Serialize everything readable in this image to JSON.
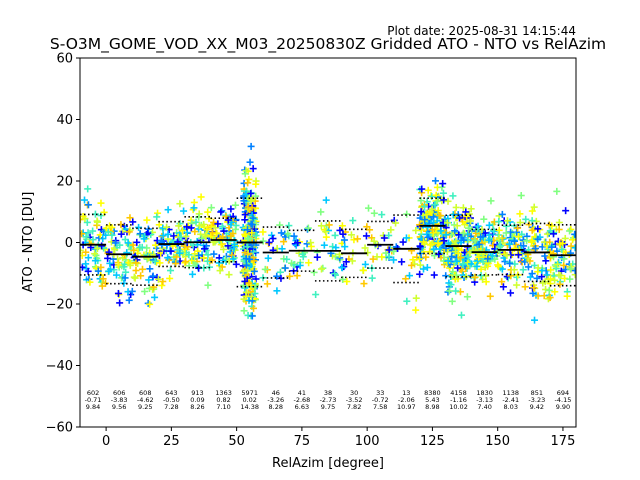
{
  "chart_data": {
    "type": "scatter",
    "plot_date": "Plot date: 2025-08-31 14:15:44",
    "title": "S-O3M_GOME_VOD_XX_M03_20250830Z Gridded ATO - NTO vs RelAzim",
    "xlabel": "RelAzim [degree]",
    "ylabel": "ATO - NTO [DU]",
    "xlim": [
      -10,
      180
    ],
    "ylim": [
      -60,
      60
    ],
    "x_ticks": [
      0,
      25,
      50,
      75,
      100,
      125,
      150,
      175
    ],
    "y_ticks": [
      -60,
      -40,
      -20,
      0,
      20,
      40,
      60
    ],
    "marker": "+",
    "colors": [
      "#0000ff",
      "#0080ff",
      "#00c8ff",
      "#40f0c0",
      "#80ff80",
      "#d0ff30",
      "#ffff00",
      "#ffc800"
    ],
    "populated_ranges": [
      [
        -10,
        60
      ],
      [
        60,
        120
      ],
      [
        120,
        180
      ]
    ],
    "bins": [
      {
        "x": -5,
        "count": "602",
        "mean": "-0.71",
        "std": "9.84"
      },
      {
        "x": 5,
        "count": "606",
        "mean": "-3.83",
        "std": "9.56"
      },
      {
        "x": 15,
        "count": "608",
        "mean": "-4.62",
        "std": "9.25"
      },
      {
        "x": 25,
        "count": "643",
        "mean": "-0.50",
        "std": "7.28"
      },
      {
        "x": 35,
        "count": "913",
        "mean": "0.09",
        "std": "8.26"
      },
      {
        "x": 45,
        "count": "1363",
        "mean": "0.82",
        "std": "7.10"
      },
      {
        "x": 55,
        "count": "5971",
        "mean": "0.02",
        "std": "14.38"
      },
      {
        "x": 65,
        "count": "46",
        "mean": "-3.26",
        "std": "8.28"
      },
      {
        "x": 75,
        "count": "41",
        "mean": "-2.68",
        "std": "6.63"
      },
      {
        "x": 85,
        "count": "38",
        "mean": "-2.73",
        "std": "9.75"
      },
      {
        "x": 95,
        "count": "30",
        "mean": "-3.52",
        "std": "7.82"
      },
      {
        "x": 105,
        "count": "33",
        "mean": "-0.72",
        "std": "7.58"
      },
      {
        "x": 115,
        "count": "13",
        "mean": "-2.06",
        "std": "10.97"
      },
      {
        "x": 125,
        "count": "8380",
        "mean": "5.43",
        "std": "8.98"
      },
      {
        "x": 135,
        "count": "4158",
        "mean": "-1.16",
        "std": "10.02"
      },
      {
        "x": 145,
        "count": "1830",
        "mean": "-3.13",
        "std": "7.40"
      },
      {
        "x": 155,
        "count": "1138",
        "mean": "-2.41",
        "std": "8.03"
      },
      {
        "x": 165,
        "count": "851",
        "mean": "-3.23",
        "std": "9.42"
      },
      {
        "x": 175,
        "count": "694",
        "mean": "-4.15",
        "std": "9.90"
      }
    ]
  }
}
